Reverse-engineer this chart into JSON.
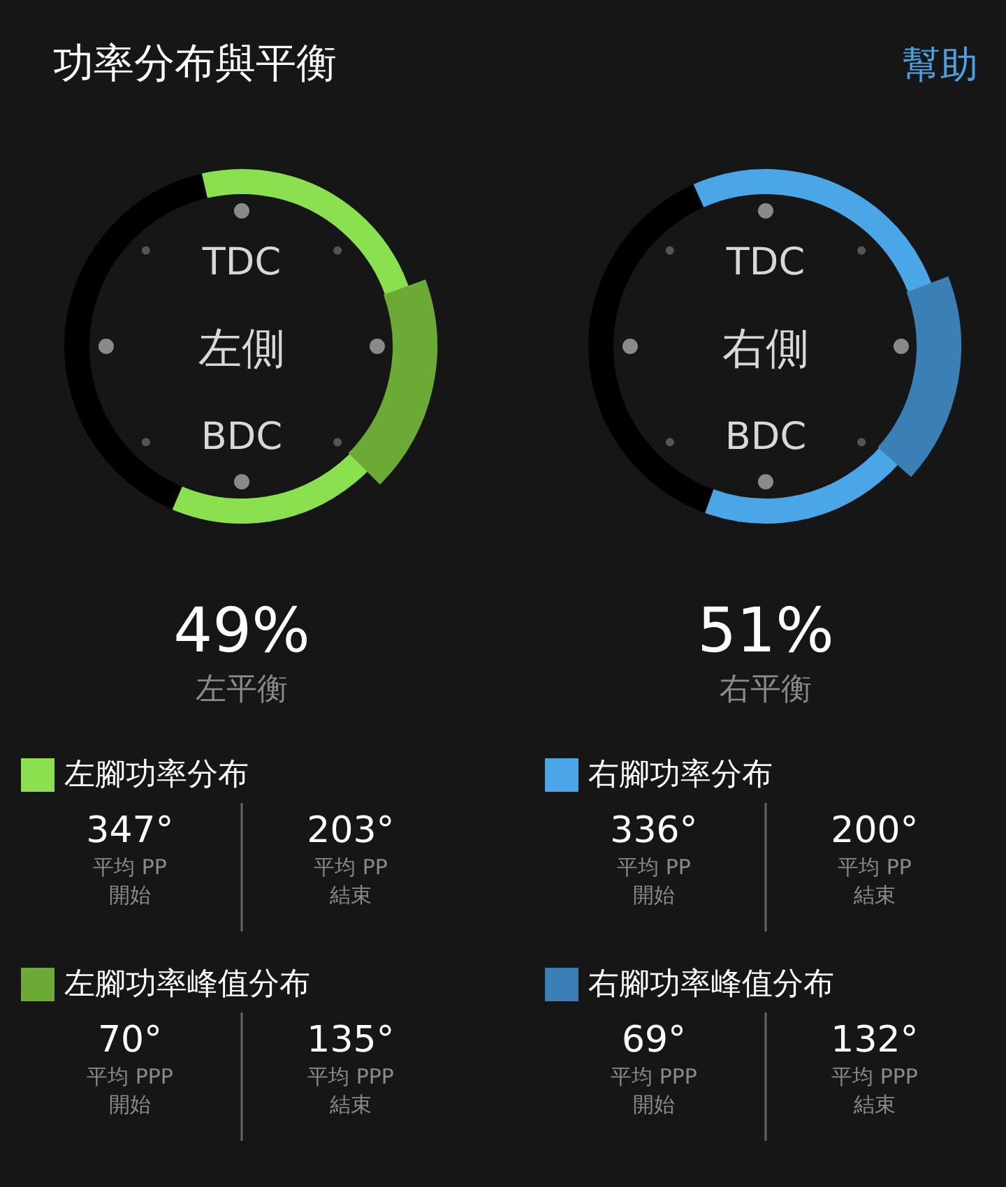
{
  "chart_data": [
    {
      "type": "other",
      "title": "功率分布與平衡",
      "annotations": [
        "幫助"
      ]
    },
    {
      "type": "other",
      "categories": [
        "開始",
        "結束"
      ],
      "annotations": [
        "左側",
        "TDC",
        "BDC",
        "49%",
        "左平衡",
        "平均 PP",
        "平均 PPP"
      ],
      "series": [
        {
          "name": "左腳功率分布",
          "color": "#8be04e",
          "values": [
            347,
            203
          ],
          "value_labels": [
            "347°",
            "203°"
          ]
        },
        {
          "name": "左腳功率峰值分布",
          "color": "#6aaa35",
          "values": [
            70,
            135
          ],
          "value_labels": [
            "70°",
            "135°"
          ]
        }
      ]
    },
    {
      "type": "other",
      "categories": [
        "開始",
        "結束"
      ],
      "annotations": [
        "右側",
        "TDC",
        "BDC",
        "51%",
        "右平衡",
        "平均 PP",
        "平均 PPP"
      ],
      "series": [
        {
          "name": "右腳功率分布",
          "color": "#4ba6e8",
          "values": [
            336,
            200
          ],
          "value_labels": [
            "336°",
            "200°"
          ]
        },
        {
          "name": "右腳功率峰值分布",
          "color": "#3a7fb5",
          "values": [
            69,
            132
          ],
          "value_labels": [
            "69°",
            "132°"
          ]
        }
      ]
    }
  ]
}
